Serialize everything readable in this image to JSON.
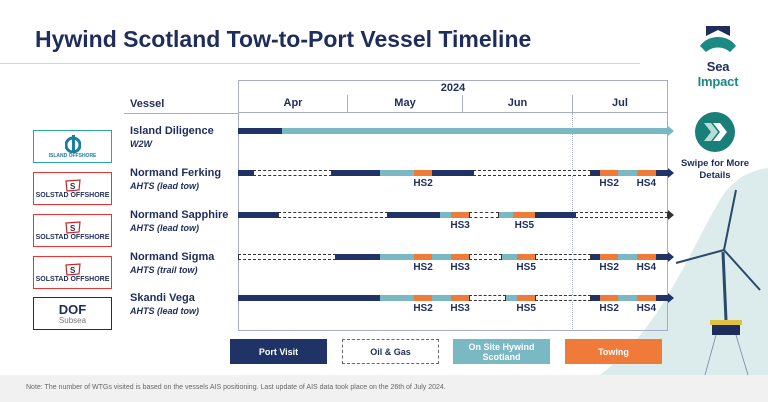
{
  "title": "Hywind Scotland Tow-to-Port Vessel Timeline",
  "brand": {
    "name_part1": "Sea",
    "name_part2": "Impact",
    "primary": "#1f2d5c",
    "accent": "#1a8a82"
  },
  "colors": {
    "port_visit": "#1f3366",
    "oil_gas": "#ffffff",
    "on_site": "#7ab8c4",
    "towing": "#f07a3a"
  },
  "timeline": {
    "year": "2024",
    "vessel_header": "Vessel",
    "months": [
      "Apr",
      "May",
      "Jun",
      "Jul"
    ]
  },
  "vessels": [
    {
      "name": "Island Diligence",
      "type": "W2W",
      "operator": "ISLAND OFFSHORE",
      "logo": "island-offshore",
      "segments": [
        {
          "kind": "port_visit",
          "start": "2024-04-01",
          "end": "2024-04-13"
        },
        {
          "kind": "on_site",
          "start": "2024-04-13",
          "end": "2024-08-01"
        }
      ],
      "arrow": "on_site"
    },
    {
      "name": "Normand Ferking",
      "type": "AHTS (lead tow)",
      "operator": "SOLSTAD OFFSHORE",
      "logo": "solstad-offshore",
      "segments": [
        {
          "kind": "port_visit",
          "start": "2024-04-01",
          "end": "2024-04-05"
        },
        {
          "kind": "oil_gas",
          "start": "2024-04-05",
          "end": "2024-04-27"
        },
        {
          "kind": "port_visit",
          "start": "2024-04-27",
          "end": "2024-05-10"
        },
        {
          "kind": "on_site",
          "start": "2024-05-10",
          "end": "2024-05-19"
        },
        {
          "kind": "towing",
          "start": "2024-05-19",
          "end": "2024-05-24",
          "label": "HS2"
        },
        {
          "kind": "port_visit",
          "start": "2024-05-24",
          "end": "2024-06-04"
        },
        {
          "kind": "oil_gas",
          "start": "2024-06-04",
          "end": "2024-07-07"
        },
        {
          "kind": "port_visit",
          "start": "2024-07-07",
          "end": "2024-07-10"
        },
        {
          "kind": "towing",
          "start": "2024-07-10",
          "end": "2024-07-16",
          "label": "HS2"
        },
        {
          "kind": "on_site",
          "start": "2024-07-16",
          "end": "2024-07-22"
        },
        {
          "kind": "towing",
          "start": "2024-07-22",
          "end": "2024-07-28",
          "label": "HS4"
        },
        {
          "kind": "port_visit",
          "start": "2024-07-28",
          "end": "2024-08-01"
        }
      ],
      "arrow": "port_visit"
    },
    {
      "name": "Normand Sapphire",
      "type": "AHTS (lead tow)",
      "operator": "SOLSTAD OFFSHORE",
      "logo": "solstad-offshore",
      "segments": [
        {
          "kind": "port_visit",
          "start": "2024-04-01",
          "end": "2024-04-12"
        },
        {
          "kind": "oil_gas",
          "start": "2024-04-12",
          "end": "2024-05-12"
        },
        {
          "kind": "port_visit",
          "start": "2024-05-12",
          "end": "2024-05-26"
        },
        {
          "kind": "on_site",
          "start": "2024-05-26",
          "end": "2024-05-29"
        },
        {
          "kind": "towing",
          "start": "2024-05-29",
          "end": "2024-06-03",
          "label": "HS3"
        },
        {
          "kind": "oil_gas",
          "start": "2024-06-03",
          "end": "2024-06-11"
        },
        {
          "kind": "on_site",
          "start": "2024-06-11",
          "end": "2024-06-15"
        },
        {
          "kind": "towing",
          "start": "2024-06-15",
          "end": "2024-06-21",
          "label": "HS5"
        },
        {
          "kind": "port_visit",
          "start": "2024-06-21",
          "end": "2024-07-02"
        },
        {
          "kind": "oil_gas",
          "start": "2024-07-02",
          "end": "2024-08-01"
        }
      ],
      "arrow": "oil_gas"
    },
    {
      "name": "Normand Sigma",
      "type": "AHTS (trail tow)",
      "operator": "SOLSTAD OFFSHORE",
      "logo": "solstad-offshore",
      "segments": [
        {
          "kind": "oil_gas",
          "start": "2024-04-01",
          "end": "2024-04-28"
        },
        {
          "kind": "port_visit",
          "start": "2024-04-28",
          "end": "2024-05-10"
        },
        {
          "kind": "on_site",
          "start": "2024-05-10",
          "end": "2024-05-19"
        },
        {
          "kind": "towing",
          "start": "2024-05-19",
          "end": "2024-05-24",
          "label": "HS2"
        },
        {
          "kind": "on_site",
          "start": "2024-05-24",
          "end": "2024-05-29"
        },
        {
          "kind": "towing",
          "start": "2024-05-29",
          "end": "2024-06-03",
          "label": "HS3"
        },
        {
          "kind": "oil_gas",
          "start": "2024-06-03",
          "end": "2024-06-12"
        },
        {
          "kind": "on_site",
          "start": "2024-06-12",
          "end": "2024-06-16"
        },
        {
          "kind": "towing",
          "start": "2024-06-16",
          "end": "2024-06-21",
          "label": "HS5"
        },
        {
          "kind": "oil_gas",
          "start": "2024-06-21",
          "end": "2024-07-07"
        },
        {
          "kind": "port_visit",
          "start": "2024-07-07",
          "end": "2024-07-10"
        },
        {
          "kind": "towing",
          "start": "2024-07-10",
          "end": "2024-07-16",
          "label": "HS2"
        },
        {
          "kind": "on_site",
          "start": "2024-07-16",
          "end": "2024-07-22"
        },
        {
          "kind": "towing",
          "start": "2024-07-22",
          "end": "2024-07-28",
          "label": "HS4"
        },
        {
          "kind": "port_visit",
          "start": "2024-07-28",
          "end": "2024-08-01"
        }
      ],
      "arrow": "port_visit"
    },
    {
      "name": "Skandi Vega",
      "type": "AHTS (lead tow)",
      "operator": "DOF",
      "operator_sub": "Subsea",
      "logo": "dof-subsea",
      "segments": [
        {
          "kind": "port_visit",
          "start": "2024-04-01",
          "end": "2024-05-10"
        },
        {
          "kind": "on_site",
          "start": "2024-05-10",
          "end": "2024-05-19"
        },
        {
          "kind": "towing",
          "start": "2024-05-19",
          "end": "2024-05-24",
          "label": "HS2"
        },
        {
          "kind": "on_site",
          "start": "2024-05-24",
          "end": "2024-05-29"
        },
        {
          "kind": "towing",
          "start": "2024-05-29",
          "end": "2024-06-03",
          "label": "HS3"
        },
        {
          "kind": "oil_gas",
          "start": "2024-06-03",
          "end": "2024-06-13"
        },
        {
          "kind": "on_site",
          "start": "2024-06-13",
          "end": "2024-06-16"
        },
        {
          "kind": "towing",
          "start": "2024-06-16",
          "end": "2024-06-21",
          "label": "HS5"
        },
        {
          "kind": "oil_gas",
          "start": "2024-06-21",
          "end": "2024-07-07"
        },
        {
          "kind": "port_visit",
          "start": "2024-07-07",
          "end": "2024-07-10"
        },
        {
          "kind": "towing",
          "start": "2024-07-10",
          "end": "2024-07-16",
          "label": "HS2"
        },
        {
          "kind": "on_site",
          "start": "2024-07-16",
          "end": "2024-07-22"
        },
        {
          "kind": "towing",
          "start": "2024-07-22",
          "end": "2024-07-28",
          "label": "HS4"
        },
        {
          "kind": "port_visit",
          "start": "2024-07-28",
          "end": "2024-08-01"
        }
      ],
      "arrow": "port_visit"
    }
  ],
  "legend": [
    {
      "kind": "port_visit",
      "label": "Port Visit"
    },
    {
      "kind": "oil_gas",
      "label": "Oil & Gas"
    },
    {
      "kind": "on_site",
      "label": "On Site Hywind Scotland"
    },
    {
      "kind": "towing",
      "label": "Towing"
    }
  ],
  "swipe": {
    "label": "Swipe for More Details",
    "icon": "double-chevron-right-icon"
  },
  "footnote": "Note: The number of WTGs visited is based on the vessels AIS positioning. Last update of AIS data took place on the 26th of July 2024."
}
